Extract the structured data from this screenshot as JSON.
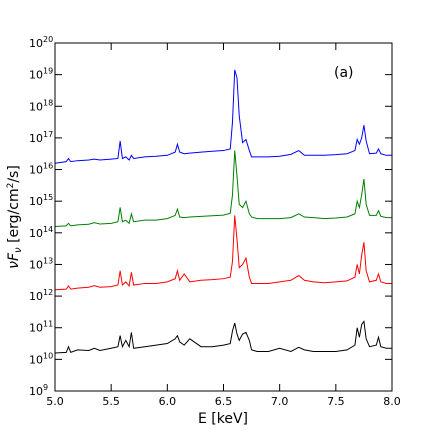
{
  "chart_data": {
    "type": "line",
    "panel_label": "(a)",
    "xlabel": "E [keV]",
    "ylabel": "νF_ν [erg/cm²/s]",
    "ylabel_parts": {
      "base": "νF",
      "sub": "ν",
      "unit_start": " [erg/cm",
      "unit_sup": "2",
      "unit_end": "/s]"
    },
    "xlim": [
      5.0,
      8.0
    ],
    "ylim_log10": [
      9,
      20
    ],
    "yscale": "log",
    "grid": false,
    "x_ticks": [
      "5.0",
      "5.5",
      "6.0",
      "6.5",
      "7.0",
      "7.5",
      "8.0"
    ],
    "y_ticks": [
      {
        "base": "10",
        "exp": "9"
      },
      {
        "base": "10",
        "exp": "10"
      },
      {
        "base": "10",
        "exp": "11"
      },
      {
        "base": "10",
        "exp": "12"
      },
      {
        "base": "10",
        "exp": "13"
      },
      {
        "base": "10",
        "exp": "14"
      },
      {
        "base": "10",
        "exp": "15"
      },
      {
        "base": "10",
        "exp": "16"
      },
      {
        "base": "10",
        "exp": "17"
      },
      {
        "base": "10",
        "exp": "18"
      },
      {
        "base": "10",
        "exp": "19"
      },
      {
        "base": "10",
        "exp": "20"
      }
    ],
    "series": [
      {
        "color": "#0000ff",
        "x": [
          5.0,
          5.1,
          5.12,
          5.14,
          5.2,
          5.3,
          5.35,
          5.4,
          5.5,
          5.56,
          5.58,
          5.6,
          5.63,
          5.66,
          5.68,
          5.7,
          5.8,
          5.9,
          6.0,
          6.07,
          6.09,
          6.11,
          6.15,
          6.2,
          6.3,
          6.4,
          6.5,
          6.56,
          6.58,
          6.6,
          6.62,
          6.64,
          6.67,
          6.7,
          6.73,
          6.75,
          6.8,
          6.9,
          7.0,
          7.1,
          7.17,
          7.22,
          7.3,
          7.4,
          7.5,
          7.6,
          7.67,
          7.69,
          7.71,
          7.73,
          7.75,
          7.77,
          7.8,
          7.86,
          7.88,
          7.9,
          7.95,
          8.0
        ],
        "log10": [
          16.2,
          16.25,
          16.35,
          16.25,
          16.28,
          16.3,
          16.33,
          16.3,
          16.33,
          16.35,
          16.9,
          16.35,
          16.4,
          16.3,
          16.45,
          16.35,
          16.4,
          16.42,
          16.45,
          16.55,
          16.8,
          16.55,
          16.5,
          16.52,
          16.55,
          16.58,
          16.6,
          16.65,
          17.5,
          19.15,
          18.9,
          17.7,
          16.85,
          16.95,
          16.6,
          16.4,
          16.4,
          16.4,
          16.42,
          16.48,
          16.6,
          16.45,
          16.45,
          16.45,
          16.47,
          16.5,
          16.6,
          16.95,
          16.8,
          17.0,
          17.4,
          16.9,
          16.5,
          16.52,
          16.65,
          16.5,
          16.45,
          16.45
        ]
      },
      {
        "color": "#008000",
        "x": [
          5.0,
          5.1,
          5.12,
          5.14,
          5.2,
          5.3,
          5.35,
          5.4,
          5.5,
          5.56,
          5.58,
          5.6,
          5.63,
          5.66,
          5.68,
          5.7,
          5.8,
          5.9,
          6.0,
          6.07,
          6.09,
          6.11,
          6.15,
          6.2,
          6.3,
          6.4,
          6.5,
          6.56,
          6.58,
          6.6,
          6.62,
          6.64,
          6.67,
          6.7,
          6.73,
          6.75,
          6.8,
          6.9,
          7.0,
          7.1,
          7.17,
          7.22,
          7.3,
          7.4,
          7.5,
          7.6,
          7.67,
          7.69,
          7.71,
          7.73,
          7.75,
          7.77,
          7.8,
          7.86,
          7.88,
          7.9,
          7.95,
          8.0
        ],
        "log10": [
          14.2,
          14.22,
          14.3,
          14.22,
          14.25,
          14.27,
          14.32,
          14.28,
          14.3,
          14.35,
          14.8,
          14.35,
          14.4,
          14.3,
          14.6,
          14.35,
          14.4,
          14.4,
          14.45,
          14.55,
          14.75,
          14.5,
          14.48,
          14.5,
          14.52,
          14.54,
          14.56,
          14.62,
          15.2,
          16.6,
          15.8,
          14.9,
          14.8,
          15.0,
          14.6,
          14.5,
          14.45,
          14.45,
          14.45,
          14.48,
          14.6,
          14.5,
          14.48,
          14.45,
          14.47,
          14.5,
          14.6,
          15.0,
          14.8,
          15.2,
          15.7,
          14.9,
          14.55,
          14.55,
          14.7,
          14.52,
          14.48,
          14.48
        ]
      },
      {
        "color": "#ff0000",
        "x": [
          5.0,
          5.1,
          5.12,
          5.14,
          5.2,
          5.3,
          5.35,
          5.4,
          5.5,
          5.56,
          5.58,
          5.6,
          5.63,
          5.66,
          5.68,
          5.7,
          5.8,
          5.9,
          6.0,
          6.07,
          6.09,
          6.11,
          6.15,
          6.2,
          6.3,
          6.4,
          6.5,
          6.56,
          6.58,
          6.6,
          6.62,
          6.64,
          6.67,
          6.7,
          6.73,
          6.75,
          6.8,
          6.9,
          7.0,
          7.1,
          7.17,
          7.22,
          7.3,
          7.4,
          7.5,
          7.6,
          7.67,
          7.69,
          7.71,
          7.73,
          7.75,
          7.77,
          7.8,
          7.86,
          7.88,
          7.9,
          7.95,
          8.0
        ],
        "log10": [
          12.2,
          12.22,
          12.32,
          12.22,
          12.25,
          12.28,
          12.33,
          12.28,
          12.3,
          12.35,
          12.8,
          12.35,
          12.45,
          12.32,
          12.75,
          12.35,
          12.4,
          12.4,
          12.45,
          12.55,
          12.8,
          12.5,
          12.7,
          12.45,
          12.5,
          12.52,
          12.55,
          12.6,
          13.1,
          14.55,
          13.8,
          12.9,
          13.0,
          13.2,
          12.6,
          12.4,
          12.4,
          12.4,
          12.45,
          12.5,
          12.65,
          12.5,
          12.45,
          12.42,
          12.45,
          12.48,
          12.6,
          13.0,
          12.7,
          13.3,
          13.7,
          12.8,
          12.45,
          12.5,
          12.7,
          12.45,
          12.4,
          12.4
        ]
      },
      {
        "color": "#000000",
        "x": [
          5.0,
          5.1,
          5.12,
          5.14,
          5.2,
          5.3,
          5.35,
          5.4,
          5.5,
          5.56,
          5.58,
          5.6,
          5.63,
          5.66,
          5.68,
          5.7,
          5.8,
          5.9,
          6.0,
          6.07,
          6.09,
          6.11,
          6.15,
          6.2,
          6.3,
          6.4,
          6.5,
          6.56,
          6.58,
          6.6,
          6.62,
          6.64,
          6.67,
          6.7,
          6.73,
          6.75,
          6.8,
          6.9,
          7.0,
          7.1,
          7.17,
          7.22,
          7.3,
          7.4,
          7.5,
          7.6,
          7.67,
          7.69,
          7.71,
          7.73,
          7.75,
          7.77,
          7.8,
          7.86,
          7.88,
          7.9,
          7.95,
          8.0
        ],
        "log10": [
          10.2,
          10.22,
          10.4,
          10.22,
          10.3,
          10.28,
          10.35,
          10.28,
          10.35,
          10.4,
          10.75,
          10.4,
          10.6,
          10.4,
          10.85,
          10.35,
          10.4,
          10.45,
          10.5,
          10.65,
          10.75,
          10.55,
          10.45,
          10.65,
          10.4,
          10.4,
          10.45,
          10.5,
          10.9,
          11.15,
          10.8,
          10.6,
          10.8,
          10.85,
          10.6,
          10.3,
          10.25,
          10.25,
          10.35,
          10.25,
          10.38,
          10.3,
          10.25,
          10.25,
          10.25,
          10.3,
          10.45,
          11.0,
          10.7,
          11.1,
          11.2,
          10.65,
          10.4,
          10.45,
          10.7,
          10.4,
          10.35,
          10.35
        ]
      }
    ]
  }
}
